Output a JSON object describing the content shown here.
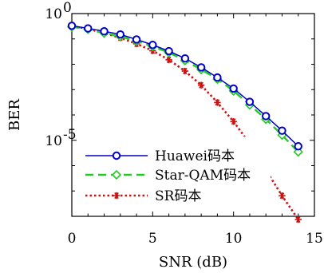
{
  "chart_data": {
    "type": "line",
    "xlabel": "SNR (dB)",
    "ylabel": "BER",
    "xlim": [
      0,
      15
    ],
    "ylim": [
      1e-08,
      1
    ],
    "y_scale": "log",
    "x_ticks": [
      0,
      5,
      10,
      15
    ],
    "x_tick_labels": [
      "0",
      "5",
      "10",
      "15"
    ],
    "y_ticks": [
      1,
      1e-05
    ],
    "y_tick_labels": [
      {
        "base": "10",
        "exp": "0"
      },
      {
        "base": "10",
        "exp": "-5"
      }
    ],
    "grid": false,
    "legend_position": "bottom-left",
    "x": [
      0,
      1,
      2,
      3,
      4,
      5,
      6,
      7,
      8,
      9,
      10,
      11,
      12,
      13,
      14
    ],
    "series": [
      {
        "name": "Huawei码本",
        "color": "#0000cc",
        "line_style": "solid",
        "marker": "circle",
        "values": [
          0.33,
          0.26,
          0.2,
          0.15,
          0.095,
          0.058,
          0.033,
          0.017,
          0.0075,
          0.003,
          0.0011,
          0.00033,
          9e-05,
          2.4e-05,
          5.8e-06
        ]
      },
      {
        "name": "Star-QAM码本",
        "color": "#22cc22",
        "line_style": "dashed",
        "marker": "diamond",
        "values": [
          0.3,
          0.24,
          0.17,
          0.125,
          0.083,
          0.05,
          0.029,
          0.014,
          0.0062,
          0.0026,
          0.00089,
          0.00025,
          6.8e-05,
          1.6e-05,
          3.5e-06
        ]
      },
      {
        "name": "SR码本",
        "color": "#cc1111",
        "line_style": "dotted",
        "marker": "asterisk",
        "values": [
          0.32,
          0.25,
          0.17,
          0.11,
          0.064,
          0.034,
          0.015,
          0.0054,
          0.0015,
          0.00031,
          5.5e-05,
          7.3e-06,
          6.7e-07,
          6.5e-08,
          7.5e-09
        ]
      }
    ]
  }
}
